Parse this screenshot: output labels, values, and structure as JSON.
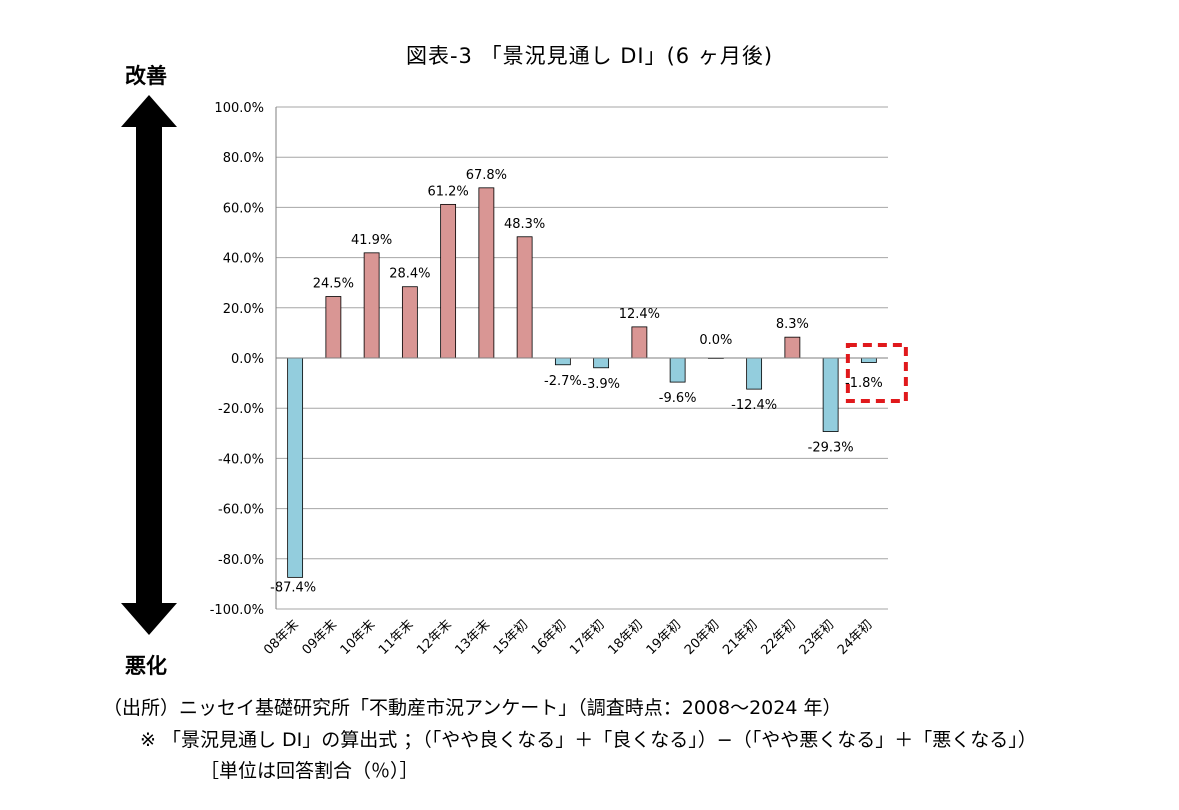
{
  "title": "図表-3 「景況見通し DI」(6 ヶ月後)",
  "side_labels": {
    "top": "改善",
    "bottom": "悪化"
  },
  "footnotes": {
    "source": "（出所）ニッセイ基礎研究所「不動産市況アンケート」（調査時点：2008～2024 年）",
    "formula": "※ 「景況見通し DI」の算出式 ；（「やや良くなる」＋「良くなる」）−（「やや悪くなる」＋「悪くなる」）",
    "unit": "［単位は回答割合（％）］"
  },
  "colors": {
    "positive": "#d99694",
    "negative": "#93cddd",
    "highlight": "#e0191c",
    "grid": "#a6a6a6"
  },
  "chart_data": {
    "type": "bar",
    "title": "図表-3 「景況見通し DI」(6 ヶ月後)",
    "categories": [
      "08年末",
      "09年末",
      "10年末",
      "11年末",
      "12年末",
      "13年末",
      "15年初",
      "16年初",
      "17年初",
      "18年初",
      "19年初",
      "20年初",
      "21年初",
      "22年初",
      "23年初",
      "24年初"
    ],
    "values": [
      -87.4,
      24.5,
      41.9,
      28.4,
      61.2,
      67.8,
      48.3,
      -2.7,
      -3.9,
      12.4,
      -9.6,
      0.0,
      -12.4,
      8.3,
      -29.3,
      -1.8
    ],
    "value_labels": [
      "-87.4%",
      "24.5%",
      "41.9%",
      "28.4%",
      "61.2%",
      "67.8%",
      "48.3%",
      "-2.7%",
      "-3.9%",
      "12.4%",
      "-9.6%",
      "0.0%",
      "-12.4%",
      "8.3%",
      "-29.3%",
      "-1.8%"
    ],
    "ylim": [
      -100,
      100
    ],
    "yticks": [
      100,
      80,
      60,
      40,
      20,
      0,
      -20,
      -40,
      -60,
      -80,
      -100
    ],
    "ytick_labels": [
      "100.0%",
      "80.0%",
      "60.0%",
      "40.0%",
      "20.0%",
      "0.0%",
      "-20.0%",
      "-40.0%",
      "-60.0%",
      "-80.0%",
      "-100.0%"
    ],
    "grid": true,
    "legend": "none",
    "highlighted_category": "24年初"
  }
}
